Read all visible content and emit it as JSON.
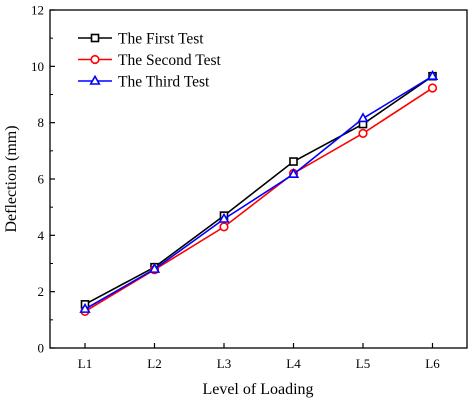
{
  "chart_data": {
    "type": "line",
    "categories": [
      "L1",
      "L2",
      "L3",
      "L4",
      "L5",
      "L6"
    ],
    "xlabel": "Level of Loading",
    "ylabel": "Deflection (mm)",
    "ylim": [
      0,
      12
    ],
    "yticks": [
      0,
      2,
      4,
      6,
      8,
      10,
      12
    ],
    "ytick_labels": [
      "0",
      "2",
      "4",
      "6",
      "8",
      "10",
      "12"
    ],
    "grid": false,
    "legend_position": "top-left",
    "series": [
      {
        "name": "The First Test",
        "color": "#000000",
        "marker": "square",
        "values": [
          1.55,
          2.87,
          4.7,
          6.62,
          7.95,
          9.65
        ]
      },
      {
        "name": "The Second Test",
        "color": "#ff0000",
        "marker": "circle",
        "values": [
          1.3,
          2.78,
          4.3,
          6.2,
          7.62,
          9.23
        ]
      },
      {
        "name": "The Third Test",
        "color": "#0000ff",
        "marker": "triangle",
        "values": [
          1.38,
          2.8,
          4.58,
          6.17,
          8.15,
          9.65
        ]
      }
    ]
  }
}
